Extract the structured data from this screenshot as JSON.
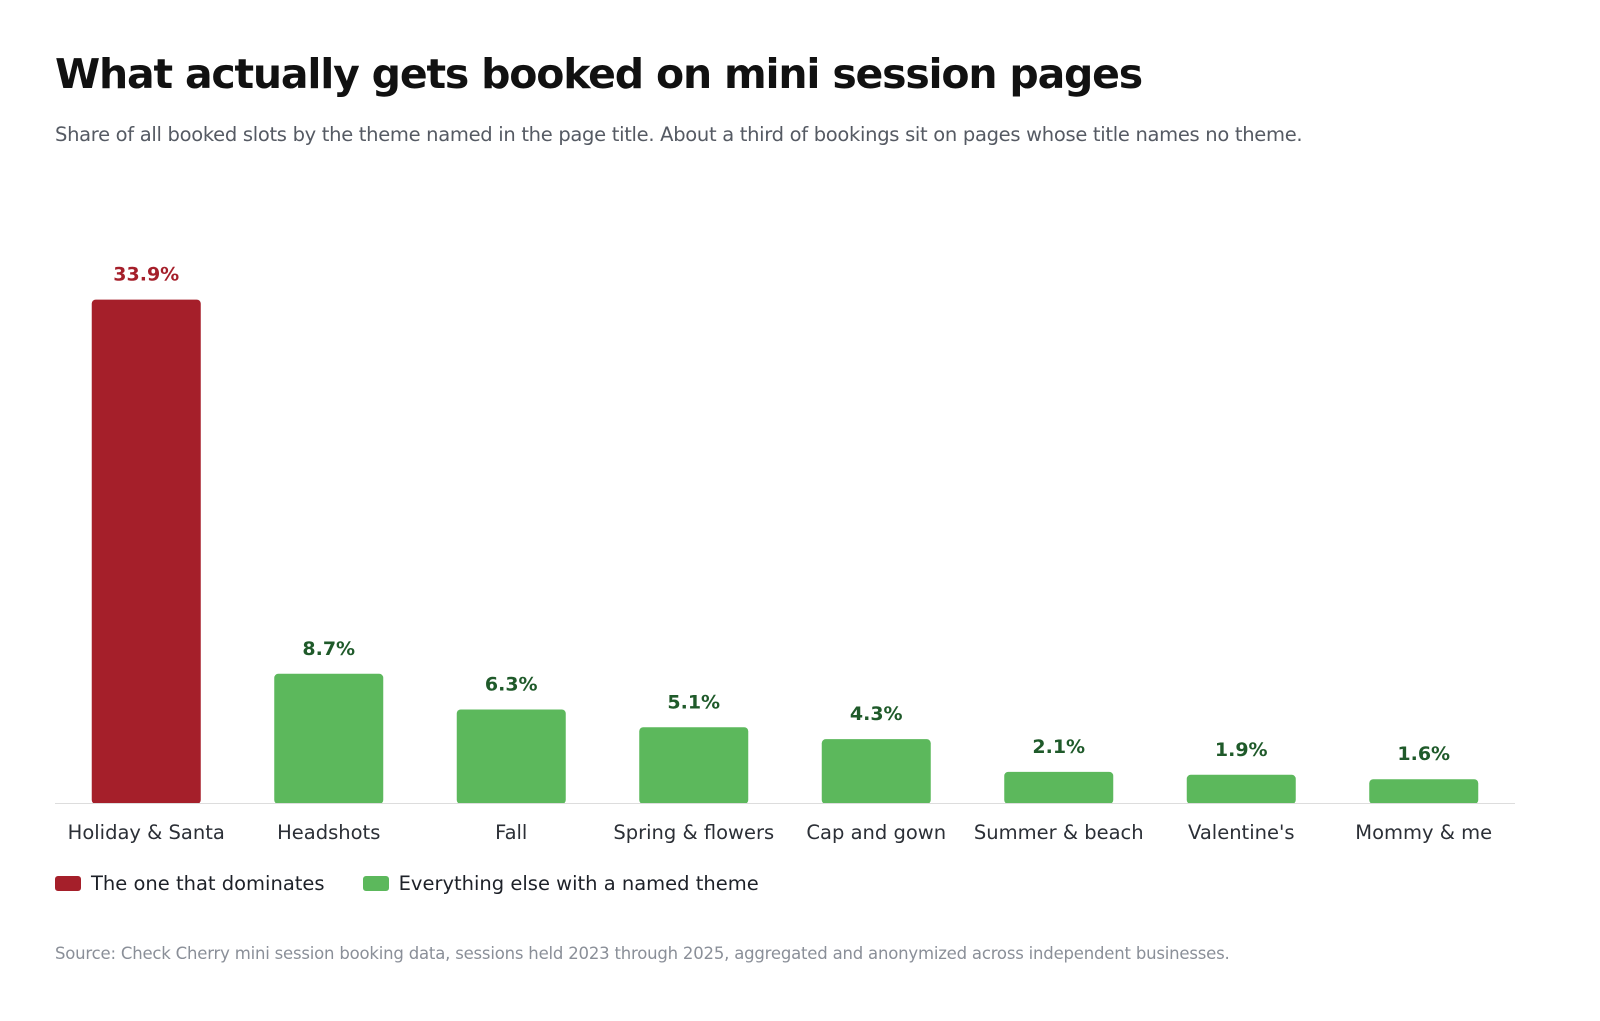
{
  "chart_data": {
    "type": "bar",
    "title": "What actually gets booked on mini session pages",
    "subtitle": "Share of all booked slots by the theme named in the page title. About a third of bookings sit on pages whose title names no theme.",
    "categories": [
      "Holiday & Santa",
      "Headshots",
      "Fall",
      "Spring & flowers",
      "Cap and gown",
      "Summer & beach",
      "Valentine's",
      "Mommy & me"
    ],
    "values": [
      33.9,
      8.7,
      6.3,
      5.1,
      4.3,
      2.1,
      1.9,
      1.6
    ],
    "value_labels": [
      "33.9%",
      "8.7%",
      "6.3%",
      "5.1%",
      "4.3%",
      "2.1%",
      "1.9%",
      "1.6%"
    ],
    "groups": [
      "dominant",
      "other",
      "other",
      "other",
      "other",
      "other",
      "other",
      "other"
    ],
    "colors": {
      "dominant": "#a51f2a",
      "other": "#5cb85c",
      "dominant_label": "#a51f2a",
      "other_label": "#1f5a2a",
      "baseline": "#dddddd"
    },
    "ylim": [
      0,
      35
    ],
    "grid": false,
    "legend": {
      "placement": "bottom-left",
      "items": [
        {
          "key": "dominant",
          "label": "The one that dominates"
        },
        {
          "key": "other",
          "label": "Everything else with a named theme"
        }
      ]
    },
    "source": "Source: Check Cherry mini session booking data, sessions held 2023 through 2025, aggregated and anonymized across independent businesses."
  }
}
